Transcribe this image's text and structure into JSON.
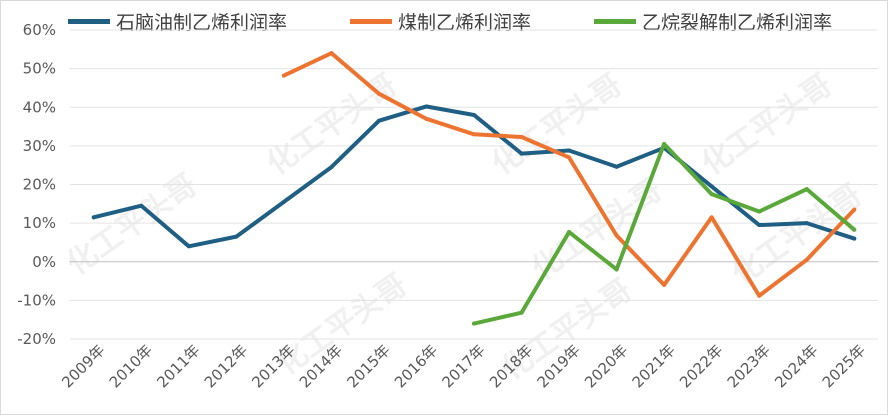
{
  "watermark": "化工平头哥",
  "chart_data": {
    "type": "line",
    "categories": [
      "2009年",
      "2010年",
      "2011年",
      "2012年",
      "2013年",
      "2014年",
      "2015年",
      "2016年",
      "2017年",
      "2018年",
      "2019年",
      "2020年",
      "2021年",
      "2022年",
      "2023年",
      "2024年",
      "2025年"
    ],
    "ylim": [
      -20,
      60
    ],
    "yticks": [
      "-20%",
      "-10%",
      "0%",
      "10%",
      "20%",
      "30%",
      "40%",
      "50%",
      "60%"
    ],
    "ytick_values": [
      -20,
      -10,
      0,
      10,
      20,
      30,
      40,
      50,
      60
    ],
    "grid": true,
    "legend_position": "top",
    "series": [
      {
        "name": "石脑油制乙烯利润率",
        "color": "#1f5f84",
        "values": [
          11.5,
          14.5,
          4,
          6.5,
          15.5,
          24.5,
          36.5,
          40.2,
          38,
          28,
          28.8,
          24.6,
          29.5,
          19.5,
          9.5,
          10,
          6
        ]
      },
      {
        "name": "煤制乙烯利润率",
        "color": "#ed7430",
        "values": [
          null,
          null,
          null,
          null,
          48.2,
          54,
          43.5,
          37,
          33,
          32.3,
          27,
          6.8,
          -6,
          11.5,
          -8.8,
          0.5,
          13.5
        ]
      },
      {
        "name": "乙烷裂解制乙烯利润率",
        "color": "#5ba83a",
        "values": [
          null,
          null,
          null,
          null,
          null,
          null,
          null,
          null,
          -16,
          -13.2,
          7.7,
          -2,
          30.5,
          17.5,
          13,
          18.8,
          8.3
        ]
      }
    ]
  }
}
